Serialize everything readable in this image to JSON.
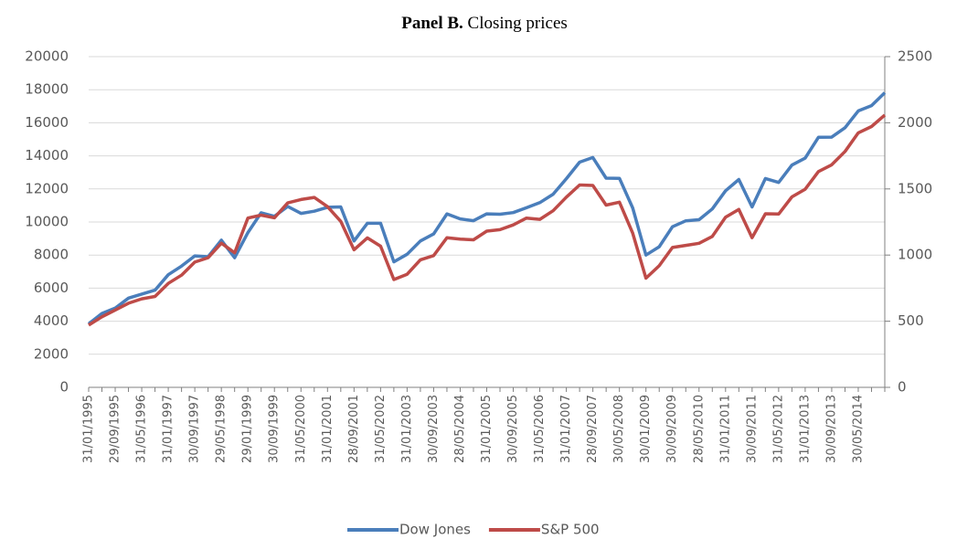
{
  "chart_data": {
    "type": "line",
    "title_prefix": "Panel B.",
    "title": "Closing prices",
    "categories": [
      "31/01/1995",
      null,
      "29/09/1995",
      null,
      "31/05/1996",
      null,
      "31/01/1997",
      null,
      "30/09/1997",
      null,
      "29/05/1998",
      null,
      "29/01/1999",
      null,
      "30/09/1999",
      null,
      "31/05/2000",
      null,
      "31/01/2001",
      null,
      "28/09/2001",
      null,
      "31/05/2002",
      null,
      "31/01/2003",
      null,
      "30/09/2003",
      null,
      "28/05/2004",
      null,
      "31/01/2005",
      null,
      "30/09/2005",
      null,
      "31/05/2006",
      null,
      "31/01/2007",
      null,
      "28/09/2007",
      null,
      "30/05/2008",
      null,
      "30/01/2009",
      null,
      "30/09/2009",
      null,
      "28/05/2010",
      null,
      "31/01/2011",
      null,
      "30/09/2011",
      null,
      "31/05/2012",
      null,
      "31/01/2013",
      null,
      "30/09/2013",
      null,
      "30/05/2014",
      null,
      null
    ],
    "series": [
      {
        "name": "Dow Jones",
        "color": "#4a7ebb",
        "values": [
          3840,
          4470,
          4790,
          5400,
          5640,
          5880,
          6810,
          7330,
          7950,
          7900,
          8900,
          7840,
          9360,
          10560,
          10340,
          10940,
          10520,
          10650,
          10890,
          10910,
          8850,
          9920,
          9925,
          7590,
          8050,
          8850,
          9275,
          10490,
          10190,
          10080,
          10490,
          10470,
          10570,
          10860,
          11170,
          11680,
          12620,
          13620,
          13900,
          12650,
          12640,
          10850,
          8000,
          8500,
          9710,
          10070,
          10140,
          10790,
          11890,
          12570,
          10910,
          12630,
          12390,
          13440,
          13860,
          15120,
          15130,
          15700,
          16720,
          17040,
          17820
        ]
      },
      {
        "name": "S&P 500",
        "color": "#be4b48",
        "axis": "y2",
        "values": [
          470,
          533,
          584,
          636,
          669,
          687,
          786,
          848,
          947,
          980,
          1090,
          1017,
          1280,
          1302,
          1282,
          1394,
          1420,
          1436,
          1366,
          1255,
          1040,
          1130,
          1067,
          815,
          855,
          964,
          996,
          1131,
          1121,
          1115,
          1181,
          1192,
          1228,
          1280,
          1270,
          1335,
          1438,
          1530,
          1526,
          1378,
          1400,
          1166,
          825,
          919,
          1057,
          1073,
          1089,
          1141,
          1286,
          1345,
          1131,
          1312,
          1310,
          1440,
          1498,
          1631,
          1682,
          1783,
          1924,
          1972,
          2059
        ]
      }
    ],
    "ylim": [
      0,
      20000
    ],
    "yticks": [
      0,
      2000,
      4000,
      6000,
      8000,
      10000,
      12000,
      14000,
      16000,
      18000,
      20000
    ],
    "y2lim": [
      0,
      2500
    ],
    "y2ticks": [
      0,
      500,
      1000,
      1500,
      2000,
      2500
    ],
    "grid": true,
    "legend": "bottom"
  }
}
